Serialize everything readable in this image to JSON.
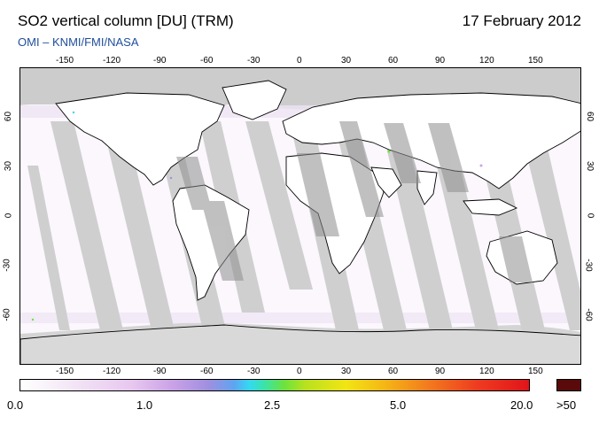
{
  "header": {
    "title": "SO2 vertical column [DU] (TRM)",
    "date": "17 February 2012",
    "credit": "OMI  –  KNMI/FMI/NASA"
  },
  "map": {
    "lon_ticks": [
      "-150",
      "-120",
      "-90",
      "-60",
      "-30",
      "0",
      "30",
      "60",
      "90",
      "120",
      "150"
    ],
    "lat_ticks": [
      "60",
      "30",
      "0",
      "-30",
      "-60"
    ],
    "colors": {
      "background": "#fbf7fd",
      "missing_data": "#cccccc",
      "polar_night": "#c8c8c8",
      "coastline": "#000000",
      "credit": "#1f4e9c"
    }
  },
  "colorbar": {
    "labels": [
      "0.0",
      "1.0",
      "2.5",
      "5.0",
      "20.0",
      ">50"
    ],
    "over_color": "#5a0a0a"
  }
}
